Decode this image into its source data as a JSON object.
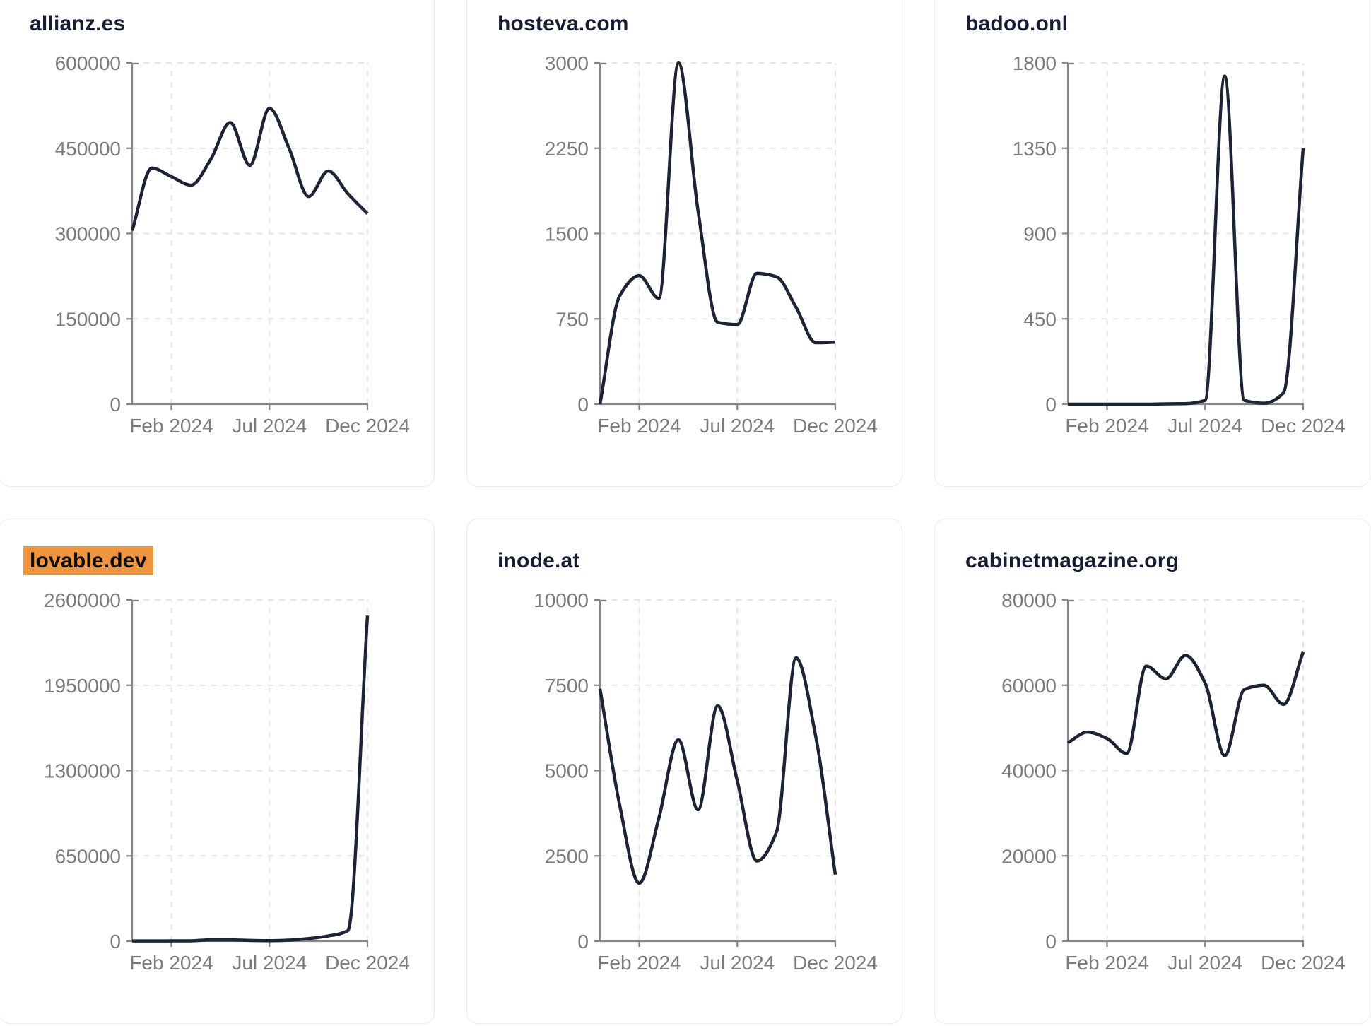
{
  "page": {
    "background": "#ffffff",
    "card_border_color": "#e8ebf0",
    "title_color": "#161d33",
    "line_color": "#1c2334",
    "axis_color": "#868686",
    "tick_label_color": "#7b7b7b",
    "grid_color": "#e5e5e7",
    "highlight_bg": "#f0953f",
    "highlight_text": "#0c0c0c"
  },
  "chart_data": [
    {
      "type": "line",
      "title": "allianz.es",
      "title_highlighted": false,
      "x": [
        "Dec 2023",
        "Jan 2024",
        "Feb 2024",
        "Mar 2024",
        "Apr 2024",
        "May 2024",
        "Jun 2024",
        "Jul 2024",
        "Aug 2024",
        "Sep 2024",
        "Oct 2024",
        "Nov 2024",
        "Dec 2024"
      ],
      "values": [
        305000,
        415000,
        400000,
        385000,
        430000,
        495000,
        420000,
        520000,
        450000,
        365000,
        410000,
        370000,
        335000
      ],
      "x_tick_labels": [
        "Feb 2024",
        "Jul 2024",
        "Dec 2024"
      ],
      "x_tick_indices": [
        2,
        7,
        12
      ],
      "y_ticks": [
        0,
        150000,
        300000,
        450000,
        600000
      ],
      "ylim": [
        0,
        600000
      ],
      "grid": true,
      "legend": "none"
    },
    {
      "type": "line",
      "title": "hosteva.com",
      "title_highlighted": false,
      "x": [
        "Dec 2023",
        "Jan 2024",
        "Feb 2024",
        "Mar 2024",
        "Apr 2024",
        "May 2024",
        "Jun 2024",
        "Jul 2024",
        "Aug 2024",
        "Sep 2024",
        "Oct 2024",
        "Nov 2024",
        "Dec 2024"
      ],
      "values": [
        0,
        950,
        1130,
        930,
        3000,
        1700,
        720,
        700,
        1150,
        1120,
        850,
        540,
        545
      ],
      "x_tick_labels": [
        "Feb 2024",
        "Jul 2024",
        "Dec 2024"
      ],
      "x_tick_indices": [
        2,
        7,
        12
      ],
      "y_ticks": [
        0,
        750,
        1500,
        2250,
        3000
      ],
      "ylim": [
        0,
        3000
      ],
      "grid": true,
      "legend": "none"
    },
    {
      "type": "line",
      "title": "badoo.onl",
      "title_highlighted": false,
      "x": [
        "Dec 2023",
        "Jan 2024",
        "Feb 2024",
        "Mar 2024",
        "Apr 2024",
        "May 2024",
        "Jun 2024",
        "Jul 2024",
        "Aug 2024",
        "Sep 2024",
        "Oct 2024",
        "Nov 2024",
        "Dec 2024"
      ],
      "values": [
        0,
        0,
        0,
        0,
        0,
        2,
        3,
        20,
        1730,
        20,
        5,
        60,
        1350
      ],
      "x_tick_labels": [
        "Feb 2024",
        "Jul 2024",
        "Dec 2024"
      ],
      "x_tick_indices": [
        2,
        7,
        12
      ],
      "y_ticks": [
        0,
        450,
        900,
        1350,
        1800
      ],
      "ylim": [
        0,
        1800
      ],
      "grid": true,
      "legend": "none"
    },
    {
      "type": "line",
      "title": "lovable.dev",
      "title_highlighted": true,
      "x": [
        "Dec 2023",
        "Jan 2024",
        "Feb 2024",
        "Mar 2024",
        "Apr 2024",
        "May 2024",
        "Jun 2024",
        "Jul 2024",
        "Aug 2024",
        "Sep 2024",
        "Oct 2024",
        "Nov 2024",
        "Dec 2024"
      ],
      "values": [
        2000,
        2000,
        2500,
        3000,
        10000,
        10000,
        6000,
        4000,
        8000,
        20000,
        40000,
        80000,
        2480000
      ],
      "x_tick_labels": [
        "Feb 2024",
        "Jul 2024",
        "Dec 2024"
      ],
      "x_tick_indices": [
        2,
        7,
        12
      ],
      "y_ticks": [
        0,
        650000,
        1300000,
        1950000,
        2600000
      ],
      "ylim": [
        0,
        2600000
      ],
      "grid": true,
      "legend": "none"
    },
    {
      "type": "line",
      "title": "inode.at",
      "title_highlighted": false,
      "x": [
        "Dec 2023",
        "Jan 2024",
        "Feb 2024",
        "Mar 2024",
        "Apr 2024",
        "May 2024",
        "Jun 2024",
        "Jul 2024",
        "Aug 2024",
        "Sep 2024",
        "Oct 2024",
        "Nov 2024",
        "Dec 2024"
      ],
      "values": [
        7400,
        4000,
        1700,
        3600,
        5900,
        3850,
        6900,
        4700,
        2350,
        3200,
        8300,
        6000,
        1950
      ],
      "x_tick_labels": [
        "Feb 2024",
        "Jul 2024",
        "Dec 2024"
      ],
      "x_tick_indices": [
        2,
        7,
        12
      ],
      "y_ticks": [
        0,
        2500,
        5000,
        7500,
        10000
      ],
      "ylim": [
        0,
        10000
      ],
      "grid": true,
      "legend": "none"
    },
    {
      "type": "line",
      "title": "cabinetmagazine.org",
      "title_highlighted": false,
      "x": [
        "Dec 2023",
        "Jan 2024",
        "Feb 2024",
        "Mar 2024",
        "Apr 2024",
        "May 2024",
        "Jun 2024",
        "Jul 2024",
        "Aug 2024",
        "Sep 2024",
        "Oct 2024",
        "Nov 2024",
        "Dec 2024"
      ],
      "values": [
        46500,
        49000,
        47500,
        44000,
        64500,
        61500,
        67000,
        60500,
        43500,
        59000,
        60000,
        55500,
        67800
      ],
      "x_tick_labels": [
        "Feb 2024",
        "Jul 2024",
        "Dec 2024"
      ],
      "x_tick_indices": [
        2,
        7,
        12
      ],
      "y_ticks": [
        0,
        20000,
        40000,
        60000,
        80000
      ],
      "ylim": [
        0,
        80000
      ],
      "grid": true,
      "legend": "none"
    }
  ]
}
